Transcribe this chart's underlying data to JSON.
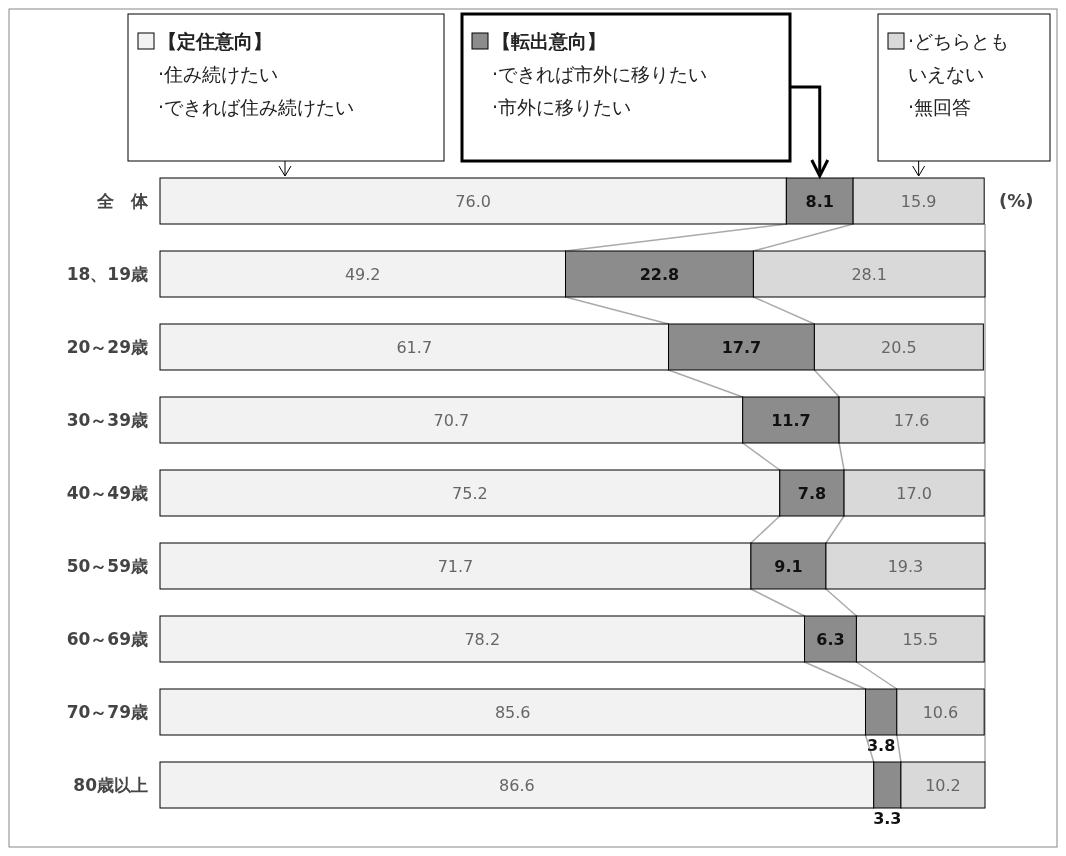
{
  "chart_data": {
    "type": "bar",
    "orientation": "horizontal",
    "stacked": true,
    "legend": "top",
    "categories": [
      "全　体",
      "18、19歳",
      "20～29歳",
      "30～39歳",
      "40～49歳",
      "50～59歳",
      "60～69歳",
      "70～79歳",
      "80歳以上"
    ],
    "series": [
      {
        "name": "【定住意向】\n·住み続けたい\n·できれば住み続けたい",
        "color": "#f2f2f2",
        "values": [
          76.0,
          49.2,
          61.7,
          70.7,
          75.2,
          71.7,
          78.2,
          85.6,
          86.6
        ],
        "value_labels": [
          "76.0",
          "49.2",
          "61.7",
          "70.7",
          "75.2",
          "71.7",
          "78.2",
          "85.6",
          "86.6"
        ]
      },
      {
        "name": "【転出意向】\n·できれば市外に移りたい\n·市外に移りたい",
        "color": "#8c8c8c",
        "values": [
          8.1,
          22.8,
          17.7,
          11.7,
          7.8,
          9.1,
          6.3,
          3.8,
          3.3
        ],
        "value_labels": [
          "8.1",
          "22.8",
          "17.7",
          "11.7",
          "7.8",
          "9.1",
          "6.3",
          "3.8",
          "3.3"
        ]
      },
      {
        "name": "·どちらともいえない\n·無回答",
        "color": "#d9d9d9",
        "values": [
          15.9,
          28.1,
          20.5,
          17.6,
          17.0,
          19.3,
          15.5,
          10.6,
          10.2
        ],
        "value_labels": [
          "15.9",
          "28.1",
          "20.5",
          "17.6",
          "17.0",
          "19.3",
          "15.5",
          "10.6",
          "10.2"
        ]
      }
    ],
    "annotations": [
      "(%)"
    ]
  }
}
